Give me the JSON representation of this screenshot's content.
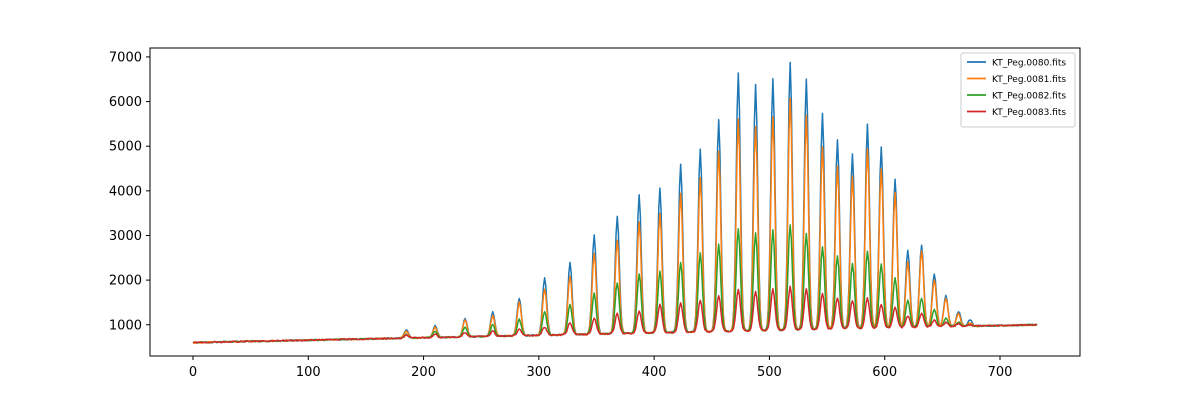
{
  "chart_data": {
    "type": "line",
    "title": "",
    "xlabel": "",
    "ylabel": "",
    "xlim": [
      -37,
      1205
    ],
    "ylim": [
      300,
      7200
    ],
    "x_ticks": [
      0,
      100,
      200,
      300,
      400,
      500,
      600,
      700
    ],
    "y_ticks": [
      1000,
      2000,
      3000,
      4000,
      5000,
      6000,
      7000
    ],
    "x_ticks_text": [
      "0",
      "100",
      "200",
      "300",
      "400",
      "500",
      "600",
      "700"
    ],
    "y_ticks_text": [
      "1000",
      "2000",
      "3000",
      "4000",
      "5000",
      "6000",
      "7000"
    ],
    "grid": false,
    "legend_position": "top-right",
    "x_range": [
      0,
      732
    ],
    "peak_positions": [
      185,
      210,
      236,
      260,
      283,
      305,
      327,
      348,
      368,
      387,
      405,
      423,
      440,
      456,
      473,
      488,
      503,
      518,
      532,
      546,
      559,
      572,
      585,
      597,
      609,
      620,
      632,
      643,
      653,
      664,
      674
    ],
    "series": [
      {
        "name": "KT_Peg.0080.fits",
        "color": "#1f77b4",
        "peak_values": [
          880,
          980,
          1150,
          1280,
          1600,
          2050,
          2400,
          3000,
          3430,
          3900,
          4050,
          4600,
          4950,
          5600,
          6650,
          6380,
          6500,
          6880,
          6500,
          5720,
          5150,
          4820,
          5480,
          4980,
          4270,
          2670,
          2790,
          2150,
          1650,
          1300,
          1100
        ]
      },
      {
        "name": "KT_Peg.0081.fits",
        "color": "#ff7f0e",
        "peak_values": [
          850,
          950,
          1100,
          1200,
          1500,
          1800,
          2100,
          2600,
          2900,
          3300,
          3500,
          3950,
          4300,
          4900,
          5600,
          5450,
          5650,
          6080,
          5680,
          5000,
          4560,
          4330,
          4950,
          4500,
          3950,
          2400,
          2650,
          2000,
          1600,
          1250,
          1050
        ]
      },
      {
        "name": "KT_Peg.0082.fits",
        "color": "#2ca02c",
        "peak_values": [
          780,
          850,
          950,
          1000,
          1120,
          1300,
          1450,
          1700,
          1950,
          2150,
          2200,
          2400,
          2600,
          2800,
          3150,
          3050,
          3120,
          3250,
          3050,
          2750,
          2550,
          2380,
          2650,
          2350,
          2050,
          1550,
          1600,
          1350,
          1150,
          1060,
          1000
        ]
      },
      {
        "name": "KT_Peg.0083.fits",
        "color": "#d62728",
        "peak_values": [
          760,
          790,
          830,
          860,
          900,
          950,
          1050,
          1150,
          1250,
          1300,
          1450,
          1500,
          1550,
          1650,
          1800,
          1750,
          1800,
          1850,
          1800,
          1700,
          1600,
          1550,
          1600,
          1450,
          1400,
          1200,
          1250,
          1100,
          1050,
          1020,
          1000
        ]
      }
    ]
  }
}
